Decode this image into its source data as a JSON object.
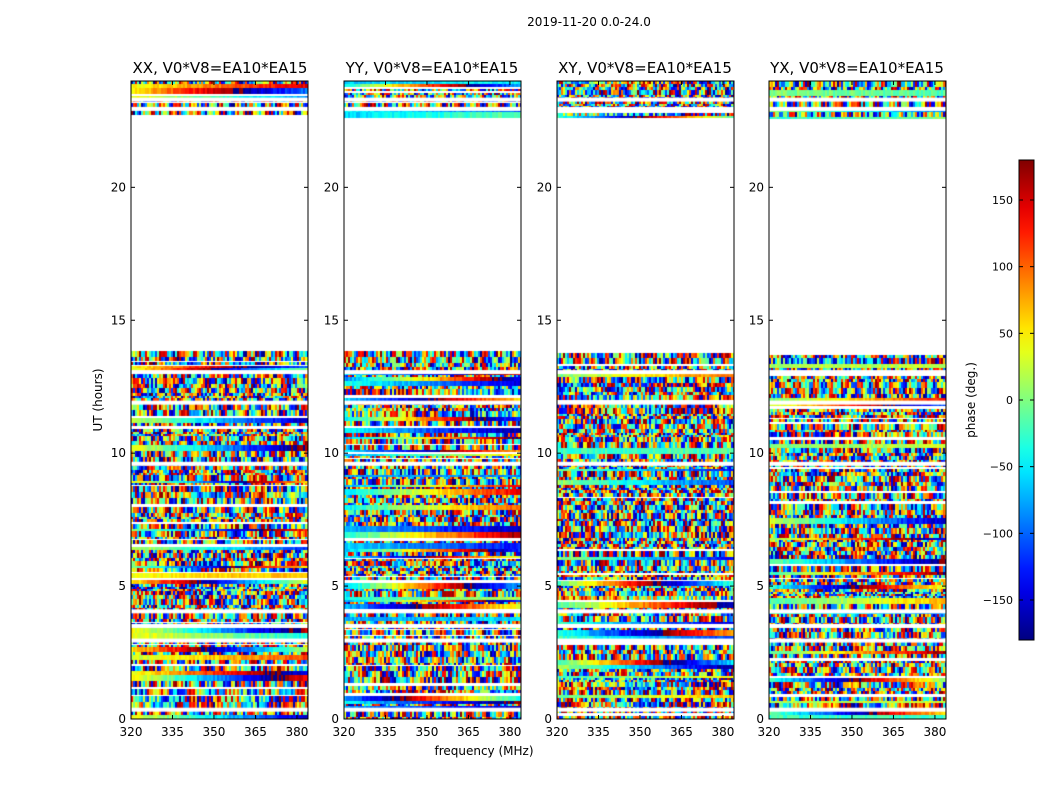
{
  "chart_data": {
    "type": "heatmap",
    "suptitle": "2019-11-20 0.0-24.0",
    "xlabel": "frequency (MHz)",
    "ylabel": "UT (hours)",
    "xlim": [
      320,
      384
    ],
    "ylim": [
      0,
      24
    ],
    "x_ticks": [
      320,
      335,
      350,
      365,
      380
    ],
    "y_ticks": [
      0,
      5,
      10,
      15,
      20
    ],
    "data_gap_hours": [
      13.8,
      22.6
    ],
    "empty_rows_hours": [
      0.35,
      2.95,
      3.5,
      4.05,
      9.6,
      11.9,
      13.05,
      22.95,
      23.3
    ],
    "panels": [
      {
        "title": "XX, V0*V8=EA10*EA15",
        "mode": "parallel",
        "bias": 30
      },
      {
        "title": "YY, V0*V8=EA10*EA15",
        "mode": "parallel",
        "bias": -60
      },
      {
        "title": "XY, V0*V8=EA10*EA15",
        "mode": "cross",
        "bias": 0
      },
      {
        "title": "YX, V0*V8=EA10*EA15",
        "mode": "cross",
        "bias": 0
      }
    ],
    "colorbar": {
      "label": "phase (deg.)",
      "range": [
        -180,
        180
      ],
      "ticks": [
        -150,
        -100,
        -50,
        0,
        50,
        100,
        150
      ],
      "tick_labels": [
        "−150",
        "−100",
        "−50",
        "0",
        "50",
        "100",
        "150"
      ],
      "colormap": "jet"
    }
  }
}
